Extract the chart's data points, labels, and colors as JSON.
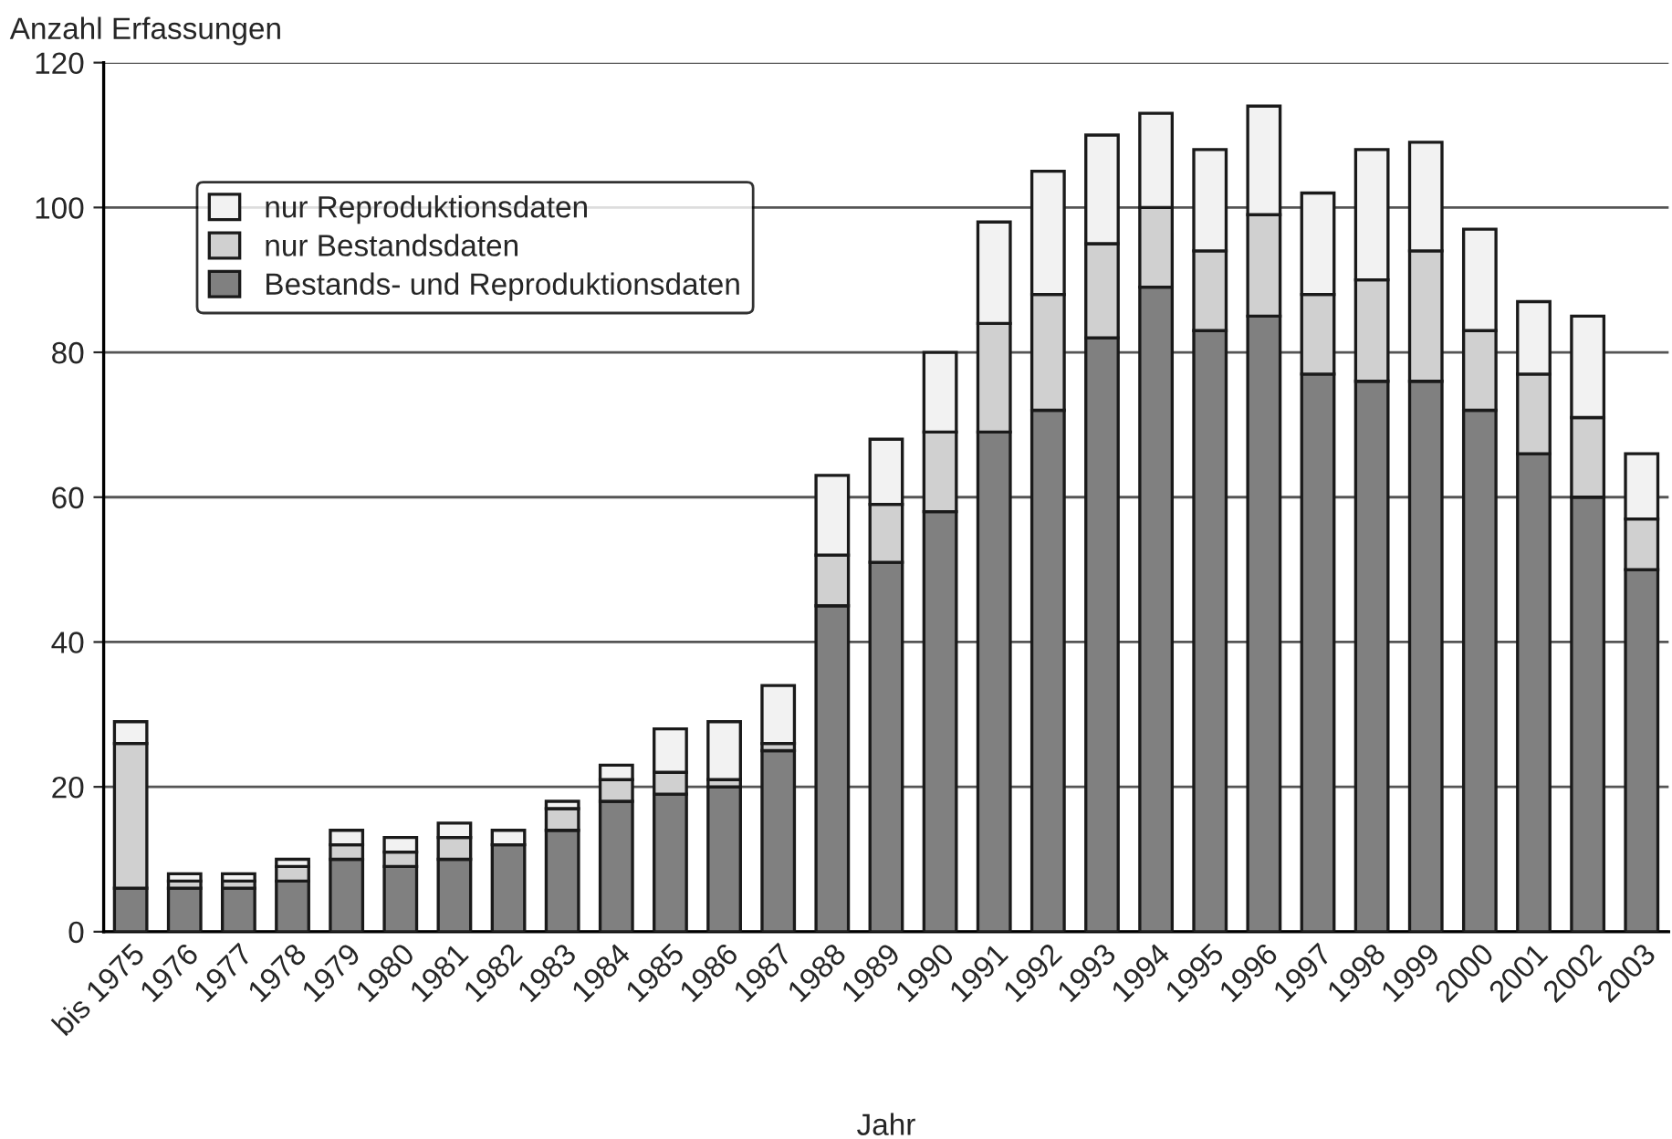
{
  "chart_data": {
    "type": "bar",
    "stacked": true,
    "xlabel": "Jahr",
    "ylabel": "Anzahl Erfassungen",
    "categories": [
      "bis 1975",
      "1976",
      "1977",
      "1978",
      "1979",
      "1980",
      "1981",
      "1982",
      "1983",
      "1984",
      "1985",
      "1986",
      "1987",
      "1988",
      "1989",
      "1990",
      "1991",
      "1992",
      "1993",
      "1994",
      "1995",
      "1996",
      "1997",
      "1998",
      "1999",
      "2000",
      "2001",
      "2002",
      "2003"
    ],
    "series": [
      {
        "name": "Bestands- und Reproduktionsdaten",
        "color": "#808080",
        "values": [
          6,
          6,
          6,
          7,
          10,
          9,
          10,
          12,
          14,
          18,
          19,
          20,
          25,
          45,
          51,
          58,
          69,
          72,
          82,
          89,
          83,
          85,
          77,
          76,
          76,
          72,
          66,
          60,
          50
        ]
      },
      {
        "name": "nur Bestandsdaten",
        "color": "#d0d0d0",
        "values": [
          20,
          1,
          1,
          2,
          2,
          2,
          3,
          null,
          3,
          3,
          3,
          1,
          1,
          7,
          8,
          11,
          15,
          16,
          13,
          11,
          11,
          14,
          11,
          14,
          18,
          11,
          11,
          11,
          7
        ]
      },
      {
        "name": "nur Reproduktionsdaten",
        "color": "#f2f2f2",
        "values": [
          3,
          1,
          1,
          1,
          2,
          2,
          2,
          2,
          1,
          2,
          6,
          8,
          8,
          11,
          9,
          11,
          14,
          17,
          15,
          13,
          14,
          15,
          14,
          18,
          15,
          14,
          10,
          14,
          9
        ]
      }
    ],
    "ylim": [
      0,
      120
    ],
    "yticks": [
      0,
      20,
      40,
      60,
      80,
      100,
      120
    ],
    "grid": "y",
    "legend": "top left"
  }
}
